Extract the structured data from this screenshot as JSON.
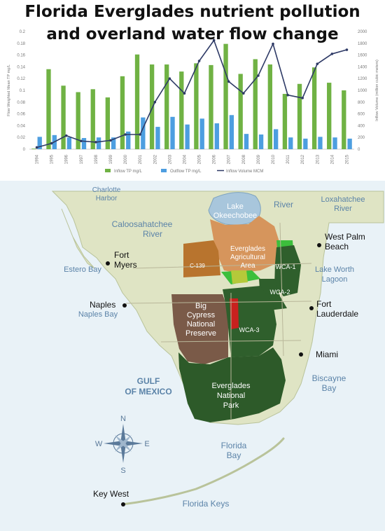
{
  "title": {
    "line1": "Florida Everglades nutrient pollution",
    "line2": "and overland water flow change"
  },
  "chart_data": {
    "type": "bar+line",
    "categories": [
      "1994",
      "1995",
      "1996",
      "1997",
      "1998",
      "1999",
      "2000",
      "2001",
      "2002",
      "2003",
      "2004",
      "2005",
      "2006",
      "2007",
      "2008",
      "2009",
      "2010",
      "2011",
      "2012",
      "2013",
      "2014",
      "2015"
    ],
    "series": [
      {
        "name": "Inflow TP mg/L",
        "type": "bar",
        "axis": "left",
        "color": "#70b244",
        "values": [
          0.001,
          0.136,
          0.108,
          0.097,
          0.102,
          0.088,
          0.124,
          0.161,
          0.144,
          0.144,
          0.132,
          0.146,
          0.143,
          0.179,
          0.128,
          0.153,
          0.144,
          0.094,
          0.111,
          0.139,
          0.113,
          0.1
        ]
      },
      {
        "name": "Outflow TP mg/L",
        "type": "bar",
        "axis": "left",
        "color": "#4d9ee0",
        "values": [
          0.021,
          0.024,
          0.02,
          0.019,
          0.02,
          0.02,
          0.03,
          0.054,
          0.038,
          0.055,
          0.042,
          0.052,
          0.044,
          0.058,
          0.026,
          0.025,
          0.034,
          0.02,
          0.018,
          0.021,
          0.02,
          0.018
        ]
      },
      {
        "name": "Inflow Volume MCM",
        "type": "line",
        "axis": "right",
        "color": "#2e3a66",
        "values": [
          30,
          100,
          230,
          140,
          120,
          150,
          250,
          250,
          800,
          1200,
          950,
          1500,
          1850,
          1150,
          950,
          1250,
          1790,
          920,
          870,
          1450,
          1620,
          1690
        ]
      }
    ],
    "ylabel_left": "Flow Weighted Mean TP mg/L",
    "ylabel_right": "Inflow Volume (million cubic meters)",
    "ylim_left": [
      0,
      0.2
    ],
    "yticks_left": [
      "0",
      "0.02",
      "0.04",
      "0.06",
      "0.08",
      "0.1",
      "0.12",
      "0.14",
      "0.16",
      "0.18",
      "0.2"
    ],
    "ylim_right": [
      0,
      2000
    ],
    "yticks_right": [
      "0",
      "200",
      "400",
      "600",
      "800",
      "1000",
      "1200",
      "1400",
      "1600",
      "1800",
      "2000"
    ],
    "legend_position": "bottom"
  },
  "map": {
    "places": {
      "charlotte_harbor": "Charlotte Harbor",
      "caloosahatchee": "Caloosahatchee",
      "river_west": "River",
      "river_north": "River",
      "lake_okeechobee": "Lake Okeechobee",
      "loxahatchee": "Loxahatchee River",
      "west_palm_beach": "West Palm Beach",
      "fort_myers": "Fort Myers",
      "eaa": "Everglades Agricultural Area",
      "c139": "C-139",
      "wca1": "WCA-1",
      "wca2": "WCA-2",
      "wca3": "WCA-3",
      "lake_worth": "Lake Worth Lagoon",
      "estero_bay": "Estero Bay",
      "naples": "Naples",
      "naples_bay": "Naples Bay",
      "big_cypress": "Big Cypress National Preserve",
      "fort_lauderdale": "Fort Lauderdale",
      "miami": "Miami",
      "gulf_of_mexico": "GULF OF MEXICO",
      "biscayne_bay": "Biscayne Bay",
      "everglades_np": "Everglades National Park",
      "florida_bay": "Florida Bay",
      "key_west": "Key West",
      "florida_keys": "Florida Keys"
    },
    "compass": {
      "n": "N",
      "s": "S",
      "e": "E",
      "w": "W"
    },
    "colors": {
      "water": "#e9f2f7",
      "land": "#dfe4c4",
      "lake": "#a8c6dc",
      "eaa": "#d6955c",
      "c139": "#b8742e",
      "wca": "#2f5f2c",
      "enp": "#2d5a29",
      "big_cypress": "#7a5a48",
      "bright_green": "#3cbf3c",
      "yellow_green": "#b5c93a",
      "red": "#c8211e"
    }
  }
}
